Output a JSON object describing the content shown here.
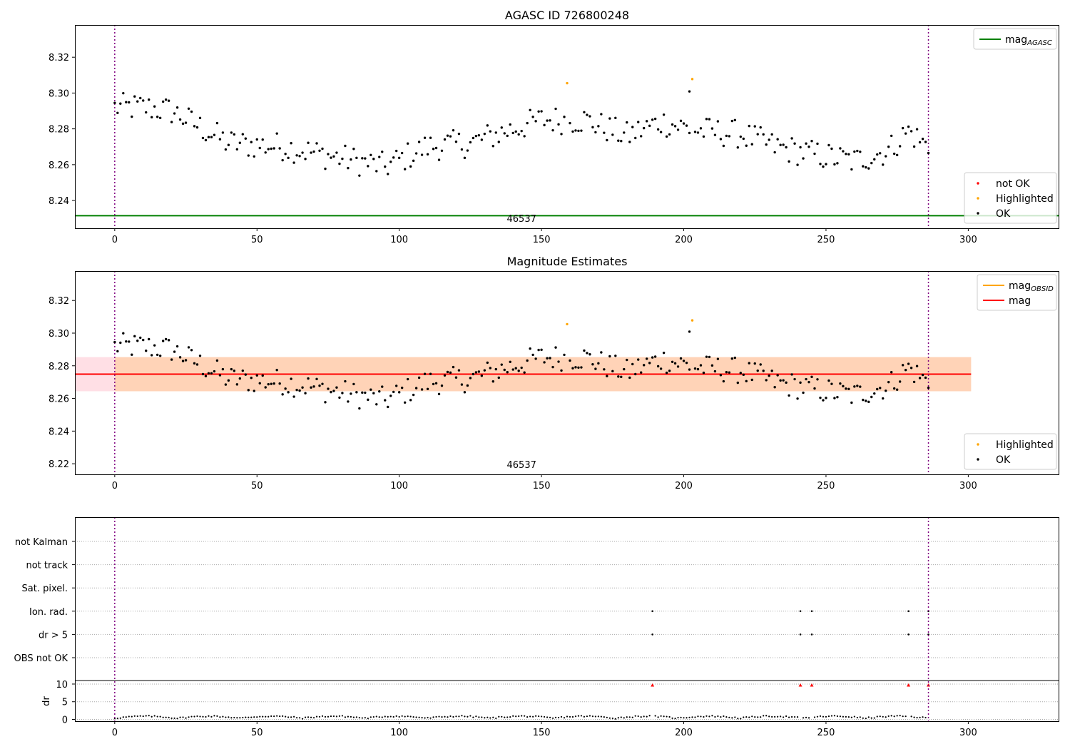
{
  "chart_data": [
    {
      "type": "scatter",
      "title": "AGASC ID 726800248",
      "xlim": [
        -14,
        332
      ],
      "ylim": [
        8.2245,
        8.338
      ],
      "xticks": [
        0,
        50,
        100,
        150,
        200,
        250,
        300
      ],
      "yticks": [
        8.24,
        8.26,
        8.28,
        8.3,
        8.32
      ],
      "ytick_labels": [
        "8.24",
        "8.26",
        "8.28",
        "8.30",
        "8.32"
      ],
      "vlines": [
        0,
        286
      ],
      "obsid_label": "46537",
      "obsid_label_x": 143,
      "ref_line": {
        "name": "mag",
        "sub": "AGASC",
        "value": 8.2315,
        "color": "#008000"
      },
      "legend_top": [
        {
          "label": "mag",
          "sub": "AGASC",
          "kind": "line",
          "color": "#008000"
        }
      ],
      "legend_bottom": [
        {
          "label": "not OK",
          "kind": "dot",
          "color": "#ff0000"
        },
        {
          "label": "Highlighted",
          "kind": "dot",
          "color": "#ffa500"
        },
        {
          "label": "OK",
          "kind": "dot",
          "color": "#000000"
        }
      ],
      "highlighted_points": [
        [
          159,
          8.3055
        ],
        [
          203,
          8.3078
        ]
      ]
    },
    {
      "type": "scatter",
      "title": "Magnitude Estimates",
      "xlim": [
        -14,
        332
      ],
      "ylim": [
        8.2135,
        8.338
      ],
      "xticks": [
        0,
        50,
        100,
        150,
        200,
        250,
        300
      ],
      "yticks": [
        8.22,
        8.24,
        8.26,
        8.28,
        8.3,
        8.32
      ],
      "ytick_labels": [
        "8.22",
        "8.24",
        "8.26",
        "8.28",
        "8.30",
        "8.32"
      ],
      "vlines": [
        0,
        286
      ],
      "obsid_label": "46537",
      "obsid_label_x": 143,
      "mag_line": {
        "name": "mag",
        "value": 8.2749,
        "color": "#ff0000"
      },
      "band_outer": {
        "x": [
          -14,
          301
        ],
        "y": [
          8.2644,
          8.2853
        ],
        "color": "#ffc0cb"
      },
      "band_obsid": {
        "x": [
          0,
          301
        ],
        "y": [
          8.2644,
          8.2853
        ],
        "color": "#ffa500"
      },
      "legend_top": [
        {
          "label": "mag",
          "sub": "OBSID",
          "kind": "line",
          "color": "#ffa500"
        },
        {
          "label": "mag",
          "kind": "line",
          "color": "#ff0000"
        }
      ],
      "legend_bottom": [
        {
          "label": "Highlighted",
          "kind": "dot",
          "color": "#ffa500"
        },
        {
          "label": "OK",
          "kind": "dot",
          "color": "#000000"
        }
      ],
      "highlighted_points": [
        [
          159,
          8.3055
        ],
        [
          203,
          8.3078
        ]
      ]
    },
    {
      "type": "scatter",
      "title": "",
      "xlim": [
        -14,
        332
      ],
      "xticks": [
        0,
        50,
        100,
        150,
        200,
        250,
        300
      ],
      "vlines": [
        0,
        286
      ],
      "flag_rows": [
        "not Kalman",
        "not track",
        "Sat. pixel.",
        "Ion. rad.",
        "dr > 5",
        "OBS not OK"
      ],
      "flag_marks": {
        "Ion. rad.": [
          189,
          241,
          245,
          279,
          286
        ],
        "dr > 5": [
          189,
          241,
          245,
          279,
          286
        ]
      },
      "dr_ylabel": "dr",
      "dr_ylim": [
        -0.5,
        11
      ],
      "dr_yticks": [
        0,
        5,
        10
      ],
      "dr_clipped_points": [
        189,
        241,
        245,
        279,
        286
      ],
      "dr_clipped_color": "#ff0000"
    }
  ]
}
